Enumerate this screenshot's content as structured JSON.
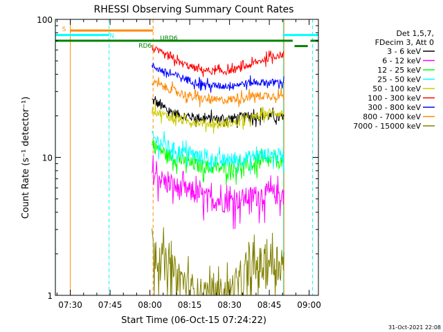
{
  "chart_data": {
    "type": "line",
    "title": "RHESSI Observing Summary Count Rates",
    "xlabel": "Start Time (06-Oct-15 07:24:22)",
    "ylabel": "Count Rate (s⁻¹ detector⁻¹)",
    "ylim": [
      1,
      100
    ],
    "yscale": "log",
    "x_tick_labels": [
      "07:30",
      "07:45",
      "08:00",
      "08:15",
      "08:30",
      "08:45",
      "09:00"
    ],
    "x_ticks_minutes": [
      450,
      465,
      480,
      495,
      510,
      525,
      540
    ],
    "x_range_minutes": [
      444.37,
      543.5
    ],
    "y_tick_labels": [
      "1",
      "10",
      "100"
    ],
    "y_ticks": [
      1,
      10,
      100
    ],
    "legend_title": [
      "Det 1,5,7,",
      "FDecim 3, Att 0"
    ],
    "legend_position": "right",
    "timestamp": "31-Oct-2021 22:08",
    "data_start_minutes": 480.8,
    "data_end_minutes": 530.5,
    "series": [
      {
        "name": "3 - 6 keV",
        "color": "#000000",
        "profile": [
          26,
          22,
          20,
          19.5,
          19,
          19,
          19.5,
          20,
          20,
          19
        ],
        "noise": 0.08
      },
      {
        "name": "6 - 12 keV",
        "color": "#ff00ff",
        "profile": [
          7.8,
          6.5,
          5.9,
          5.5,
          5.0,
          4.8,
          5.0,
          5.3,
          5.5,
          5.4
        ],
        "noise": 0.18
      },
      {
        "name": "12 - 25 keV",
        "color": "#00ff00",
        "profile": [
          12.5,
          10.5,
          9.5,
          8.8,
          8.5,
          8.3,
          8.6,
          9.0,
          9.4,
          9.4
        ],
        "noise": 0.12
      },
      {
        "name": "25 - 50 keV",
        "color": "#00ffff",
        "profile": [
          14,
          12,
          11,
          10.3,
          9.7,
          9.5,
          9.8,
          10.2,
          10.5,
          10.3
        ],
        "noise": 0.12
      },
      {
        "name": "50 - 100 keV",
        "color": "#cccc00",
        "profile": [
          22,
          20,
          18.5,
          18,
          17.5,
          17.5,
          18,
          19.5,
          21,
          21
        ],
        "noise": 0.07
      },
      {
        "name": "100 - 300 keV",
        "color": "#ff0000",
        "profile": [
          62,
          54,
          48,
          44,
          42,
          42,
          44,
          48,
          53,
          56
        ],
        "noise": 0.06
      },
      {
        "name": "300 - 800 keV",
        "color": "#0000ff",
        "profile": [
          46,
          41,
          38,
          35,
          33,
          33,
          34,
          35,
          35,
          35
        ],
        "noise": 0.06
      },
      {
        "name": "800 - 7000 keV",
        "color": "#ff8800",
        "profile": [
          35,
          32,
          29,
          27,
          26,
          26,
          27,
          28,
          28,
          28
        ],
        "noise": 0.07
      },
      {
        "name": "7000 - 15000 keV",
        "color": "#808000",
        "profile": [
          2.4,
          1.6,
          1.3,
          1.0,
          1.0,
          1.0,
          1.2,
          1.6,
          1.8,
          1.8
        ],
        "noise": 0.35
      }
    ],
    "annotations": [
      {
        "label": "S",
        "color": "#ff8800"
      },
      {
        "label": "N",
        "color": "#00ffff"
      },
      {
        "label": "RD6",
        "color": "#008000"
      },
      {
        "label": "URD6",
        "color": "#008000"
      }
    ],
    "flags": [
      {
        "label": "S",
        "color": "#ff8800",
        "start_min": 450.0,
        "end_min": 481.2,
        "level": 83
      },
      {
        "label": "N",
        "color": "#00ffff",
        "start_min": 444.4,
        "end_min": 464.6,
        "level": 77
      },
      {
        "label": "",
        "color": "#00ffff",
        "start_min": 530.3,
        "end_min": 543.5,
        "level": 77
      },
      {
        "label": "RD6",
        "color": "#008000",
        "start_min": 444.4,
        "end_min": 533.8,
        "level": 70
      },
      {
        "label": "",
        "color": "#008000",
        "start_min": 534.5,
        "end_min": 539.5,
        "level": 64
      },
      {
        "label": "URD6",
        "color": "#008000",
        "start_min": 540.5,
        "end_min": 543.5,
        "level": 70
      }
    ],
    "vlines": [
      {
        "min": 444.4,
        "color": "#00ffff",
        "style": "solid"
      },
      {
        "min": 450.0,
        "color": "#ff8800",
        "style": "solid"
      },
      {
        "min": 464.6,
        "color": "#00ffff",
        "style": "dashed"
      },
      {
        "min": 481.2,
        "color": "#ff8800",
        "style": "dashed"
      },
      {
        "min": 530.3,
        "color": "#00ffff",
        "style": "solid"
      },
      {
        "min": 530.5,
        "color": "#ff8800",
        "style": "solid"
      },
      {
        "min": 541.3,
        "color": "#00ffff",
        "style": "dashed"
      }
    ]
  }
}
